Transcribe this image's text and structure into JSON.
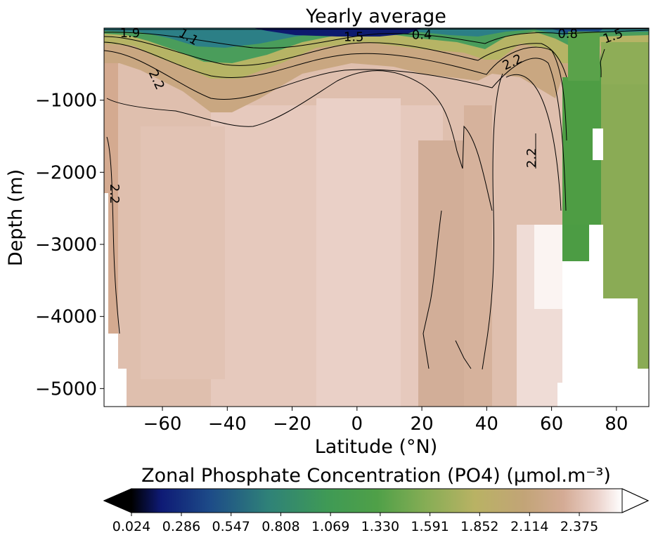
{
  "chart_data": {
    "type": "heatmap",
    "title": "Yearly average",
    "xlabel": "Latitude (°N)",
    "ylabel": "Depth (m)",
    "xlim": [
      -78,
      90
    ],
    "ylim": [
      -5250,
      0
    ],
    "x_ticks": [
      -60,
      -40,
      -20,
      0,
      20,
      40,
      60,
      80
    ],
    "x_tick_labels": [
      "−60",
      "−40",
      "−20",
      "0",
      "20",
      "40",
      "60",
      "80"
    ],
    "y_ticks": [
      -1000,
      -2000,
      -3000,
      -4000,
      -5000
    ],
    "y_tick_labels": [
      "−1000",
      "−2000",
      "−3000",
      "−4000",
      "−5000"
    ],
    "colorbar": {
      "label": "Zonal Phosphate Concentration (PO4) (µmol.m⁻³)",
      "vmin": 0.024,
      "vmax": 2.6,
      "ticks": [
        0.024,
        0.286,
        0.547,
        0.808,
        1.069,
        1.33,
        1.591,
        1.852,
        2.114,
        2.375
      ],
      "tick_labels": [
        "0.024",
        "0.286",
        "0.547",
        "0.808",
        "1.069",
        "1.330",
        "1.591",
        "1.852",
        "2.114",
        "2.375"
      ],
      "extend": "both",
      "colormap": "gist_earth",
      "under_color": "#000000",
      "over_color": "#ffffff"
    },
    "contour_levels": [
      0.4,
      0.8,
      1.1,
      1.5,
      1.9,
      2.2
    ],
    "contour_labels": [
      {
        "text": "1.9",
        "x": -70,
        "y": -80,
        "angle": 0
      },
      {
        "text": "1.1",
        "x": -52,
        "y": -130,
        "angle": 30
      },
      {
        "text": "1.5",
        "x": -1,
        "y": -130,
        "angle": 0
      },
      {
        "text": "0.4",
        "x": 20,
        "y": -100,
        "angle": 0
      },
      {
        "text": "0.8",
        "x": 65,
        "y": -90,
        "angle": 0
      },
      {
        "text": "1.5",
        "x": 79,
        "y": -120,
        "angle": -20
      },
      {
        "text": "2.2",
        "x": -62,
        "y": -720,
        "angle": 65
      },
      {
        "text": "2.2",
        "x": 48,
        "y": -480,
        "angle": -25
      },
      {
        "text": "2.2",
        "x": 54,
        "y": -1800,
        "angle": -90
      },
      {
        "text": "2.2",
        "x": -75,
        "y": -2300,
        "angle": 90
      }
    ],
    "zones": [
      {
        "lat": [
          -78,
          -72
        ],
        "surface": 1.9,
        "deep": 2.25
      },
      {
        "lat": [
          -72,
          -50
        ],
        "surface": 1.5,
        "deep": 2.3
      },
      {
        "lat": [
          -50,
          -20
        ],
        "surface": 1.0,
        "deep": 2.3
      },
      {
        "lat": [
          -20,
          10
        ],
        "surface": 0.8,
        "deep": 2.35
      },
      {
        "lat": [
          10,
          40
        ],
        "surface": 0.5,
        "deep": 2.25
      },
      {
        "lat": [
          40,
          62
        ],
        "surface": 1.6,
        "deep": 2.3
      },
      {
        "lat": [
          62,
          75
        ],
        "surface": 0.9,
        "deep": 1.1
      },
      {
        "lat": [
          75,
          90
        ],
        "surface": 1.5,
        "deep": 1.6
      }
    ]
  }
}
